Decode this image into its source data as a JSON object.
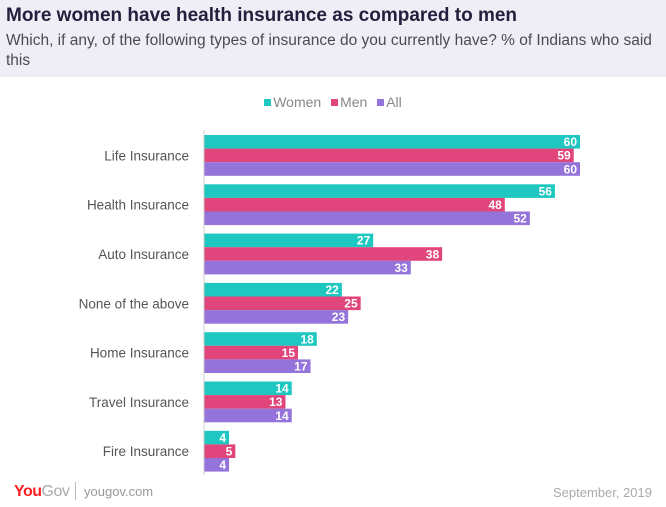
{
  "header": {
    "title": "More women have health insurance as compared to men",
    "subtitle": "Which, if any, of the following types of insurance do you currently have? % of Indians who said this"
  },
  "footer": {
    "logo": "YouGov",
    "site": "yougov.com",
    "date": "September, 2019"
  },
  "chart_data": {
    "type": "bar",
    "orientation": "horizontal",
    "title": "More women have health insurance as compared to men",
    "categories": [
      "Life Insurance",
      "Health Insurance",
      "Auto Insurance",
      "None of the above",
      "Home Insurance",
      "Travel Insurance",
      "Fire Insurance"
    ],
    "series": [
      {
        "name": "Women",
        "color": "#1fc7c1",
        "values": [
          60,
          56,
          27,
          22,
          18,
          14,
          4
        ]
      },
      {
        "name": "Men",
        "color": "#e0457b",
        "values": [
          59,
          48,
          38,
          25,
          15,
          13,
          5
        ]
      },
      {
        "name": "All",
        "color": "#9474da",
        "values": [
          60,
          52,
          33,
          23,
          17,
          14,
          4
        ]
      }
    ],
    "xlim": [
      0,
      60
    ],
    "legend": "top-center",
    "grid": false,
    "data_labels": true
  }
}
